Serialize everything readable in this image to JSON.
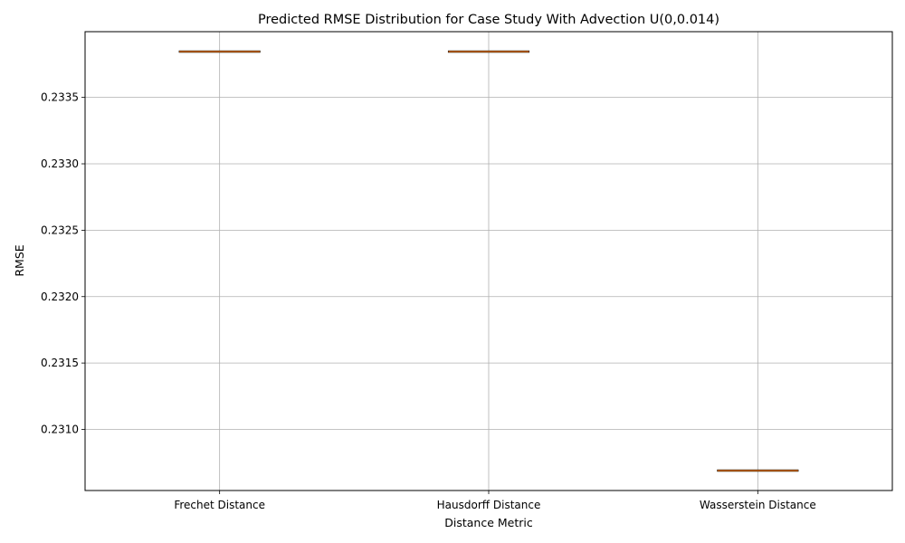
{
  "chart_data": {
    "type": "box",
    "title": "Predicted RMSE Distribution for Case Study With Advection U(0,0.014)",
    "xlabel": "Distance Metric",
    "ylabel": "RMSE",
    "categories": [
      "Frechet Distance",
      "Hausdorff Distance",
      "Wasserstein Distance"
    ],
    "values": [
      0.233845,
      0.233845,
      0.23069
    ],
    "ylim": [
      0.23054,
      0.233995
    ],
    "yticks": [
      0.231,
      0.2315,
      0.232,
      0.2325,
      0.233,
      0.2335
    ],
    "ytick_labels": [
      "0.2310",
      "0.2315",
      "0.2320",
      "0.2325",
      "0.2330",
      "0.2335"
    ],
    "grid": true,
    "colors": {
      "median": "#ff7f0e",
      "box": "#000000",
      "grid": "#b0b0b0"
    }
  }
}
